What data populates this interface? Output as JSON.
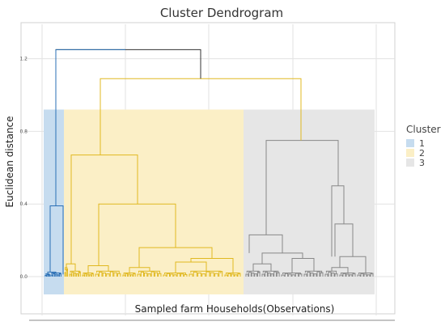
{
  "chart_data": {
    "type": "dendrogram",
    "title": "Cluster Dendrogram",
    "xlabel": "Sampled farm Households(Observations)",
    "ylabel": "Euclidean distance",
    "ylim": [
      -0.1,
      1.35
    ],
    "yticks": [
      0.0,
      0.4,
      0.8,
      1.2
    ],
    "ytick_labels": [
      "0.0",
      "0.4",
      "0.8",
      "1.2"
    ],
    "grid": true,
    "legend": {
      "title": "Cluster",
      "placement": "right",
      "entries": [
        {
          "label": "1",
          "color": "#c6dcef"
        },
        {
          "label": "2",
          "color": "#fbefc6"
        },
        {
          "label": "3",
          "color": "#e6e6e6"
        }
      ]
    },
    "clusters": [
      {
        "name": "1",
        "line_color": "#2a6fb5",
        "fill_color": "#c6dcef",
        "merge_height": 0.39
      },
      {
        "name": "2",
        "line_color": "#e0b820",
        "fill_color": "#fbefc6",
        "merge_height": 0.67
      },
      {
        "name": "3",
        "line_color": "#888888",
        "fill_color": "#e6e6e6",
        "merge_height": 0.75
      }
    ],
    "merges": [
      {
        "joins": [
          "2",
          "3"
        ],
        "height": 1.09
      },
      {
        "joins": [
          "1",
          "2+3"
        ],
        "height": 1.25
      }
    ],
    "cut_height": 0.92,
    "colors": {
      "top_link": "#333333"
    }
  }
}
